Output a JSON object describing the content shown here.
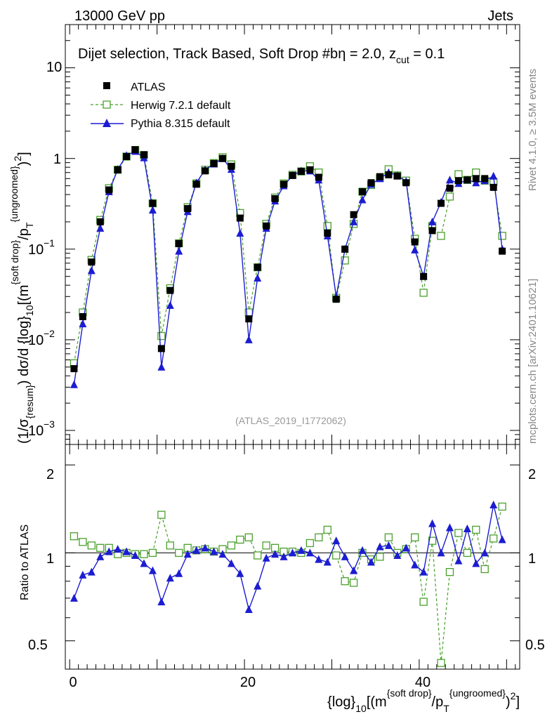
{
  "header": {
    "left": "13000 GeV pp",
    "right": "Jets"
  },
  "legend": {
    "title_main": "Dijet selection, Track Based, Soft Drop #b",
    "title_eta": "η = 2.0, z",
    "title_cut_sub": "cut",
    "title_cut_val": " = 0.1",
    "entries": [
      "ATLAS",
      "Herwig 7.2.1 default",
      "Pythia 8.315 default"
    ]
  },
  "watermark": "(ATLAS_2019_I1772062)",
  "side_labels": {
    "rivet": "Rivet 4.1.0, ≥ 3.5M events",
    "mcplots": "mcplots.cern.ch [arXiv:2401.10621]"
  },
  "axis": {
    "y_main_prefix": "(1/σ",
    "y_main_sub1": "{resum}",
    "y_main_mid": ") dσ/d {log}",
    "y_main_sub2": "10",
    "y_main_mid2": "[(m",
    "y_main_sup1": "{soft drop}",
    "y_main_mid3": "/p",
    "y_main_sub3": "T",
    "y_main_sup2": "{ungroomed}",
    "y_main_end": ")",
    "y_main_sup3": "2",
    "y_main_close": "]",
    "y_ratio": "Ratio to ATLAS",
    "x_pre": "{log}",
    "x_sub1": "10",
    "x_mid": "[(m",
    "x_sup1": "{soft drop}",
    "x_mid2": "/p",
    "x_sub2": "T",
    "x_sup2": "{ungroomed}",
    "x_end": ")",
    "x_sup3": "2",
    "x_close": "]",
    "main_tick_labels": [
      "10",
      "1",
      "10",
      "10"
    ],
    "main_tick_exps": [
      "",
      "",
      "−1",
      "−2",
      "−3"
    ],
    "ratio_tick_labels": [
      "2",
      "1",
      "0.5"
    ],
    "x_tick_labels": [
      "0",
      "20",
      "40"
    ]
  },
  "chart_data": {
    "type": "scatter",
    "x": [
      0.5,
      1.5,
      2.5,
      3.5,
      4.5,
      5.5,
      6.5,
      7.5,
      8.5,
      9.5,
      10.5,
      11.5,
      12.5,
      13.5,
      14.5,
      15.5,
      16.5,
      17.5,
      18.5,
      19.5,
      20.5,
      21.5,
      22.5,
      23.5,
      24.5,
      25.5,
      26.5,
      27.5,
      28.5,
      29.5,
      30.5,
      31.5,
      32.5,
      33.5,
      34.5,
      35.5,
      36.5,
      37.5,
      38.5,
      39.5,
      40.5,
      41.5,
      42.5,
      43.5,
      44.5,
      45.5,
      46.5,
      47.5,
      48.5,
      49.5
    ],
    "xlim": [
      -0.5,
      51.5
    ],
    "ylim_main": [
      0.0007,
      30
    ],
    "ylim_ratio": [
      0.4,
      2.35
    ],
    "main_y_scale": "log",
    "ratio_y_scale": "log",
    "series": [
      {
        "name": "ATLAS",
        "values": [
          0.0048,
          0.018,
          0.072,
          0.2,
          0.45,
          0.75,
          1.05,
          1.25,
          1.1,
          0.32,
          0.008,
          0.035,
          0.115,
          0.28,
          0.52,
          0.73,
          0.88,
          1.0,
          0.82,
          0.22,
          0.017,
          0.063,
          0.18,
          0.36,
          0.52,
          0.65,
          0.72,
          0.75,
          0.62,
          0.15,
          0.028,
          0.1,
          0.24,
          0.43,
          0.54,
          0.63,
          0.66,
          0.64,
          0.54,
          0.12,
          0.05,
          0.16,
          0.32,
          0.47,
          0.57,
          0.58,
          0.6,
          0.6,
          0.48,
          0.095
        ],
        "ratio": [
          1,
          1,
          1,
          1,
          1,
          1,
          1,
          1,
          1,
          1,
          1,
          1,
          1,
          1,
          1,
          1,
          1,
          1,
          1,
          1,
          1,
          1,
          1,
          1,
          1,
          1,
          1,
          1,
          1,
          1,
          1,
          1,
          1,
          1,
          1,
          1,
          1,
          1,
          1,
          1,
          1,
          1,
          1,
          1,
          1,
          1,
          1,
          1,
          1,
          1
        ]
      },
      {
        "name": "Herwig 7.2.1 default",
        "values": [
          0.0055,
          0.02,
          0.076,
          0.21,
          0.47,
          0.75,
          1.05,
          1.24,
          1.09,
          0.32,
          0.011,
          0.037,
          0.116,
          0.29,
          0.53,
          0.75,
          0.89,
          1.03,
          0.86,
          0.25,
          0.02,
          0.063,
          0.19,
          0.37,
          0.53,
          0.66,
          0.72,
          0.82,
          0.7,
          0.18,
          0.029,
          0.075,
          0.19,
          0.43,
          0.51,
          0.61,
          0.76,
          0.65,
          0.57,
          0.13,
          0.033,
          0.18,
          0.14,
          0.38,
          0.67,
          0.58,
          0.7,
          0.57,
          0.55,
          0.14
        ],
        "ratio": [
          1.14,
          1.09,
          1.06,
          1.04,
          1.04,
          0.99,
          1.0,
          0.99,
          0.99,
          1.0,
          1.35,
          1.06,
          1.0,
          1.04,
          1.02,
          1.03,
          1.01,
          1.03,
          1.06,
          1.11,
          1.13,
          0.98,
          1.06,
          1.04,
          1.01,
          1.01,
          1.0,
          1.08,
          1.13,
          1.2,
          0.98,
          0.8,
          0.79,
          1.0,
          0.95,
          0.97,
          1.13,
          1.0,
          1.03,
          1.13,
          0.68,
          1.1,
          0.42,
          0.86,
          1.17,
          1.0,
          1.2,
          0.88,
          1.12,
          1.44
        ]
      },
      {
        "name": "Pythia 8.315 default",
        "values": [
          0.0032,
          0.015,
          0.058,
          0.17,
          0.43,
          0.76,
          1.08,
          1.2,
          1.02,
          0.27,
          0.005,
          0.024,
          0.095,
          0.26,
          0.54,
          0.75,
          0.87,
          1.0,
          0.76,
          0.15,
          0.01,
          0.048,
          0.17,
          0.34,
          0.5,
          0.65,
          0.73,
          0.73,
          0.58,
          0.14,
          0.03,
          0.1,
          0.2,
          0.35,
          0.52,
          0.6,
          0.7,
          0.65,
          0.56,
          0.098,
          0.05,
          0.2,
          0.33,
          0.58,
          0.53,
          0.58,
          0.54,
          0.57,
          0.64,
          0.1
        ],
        "ratio": [
          0.7,
          0.84,
          0.86,
          0.97,
          1.01,
          1.03,
          1.01,
          0.98,
          0.92,
          0.87,
          0.68,
          0.82,
          0.85,
          0.99,
          1.02,
          1.04,
          1.01,
          0.99,
          0.92,
          0.85,
          0.64,
          0.77,
          0.96,
          0.99,
          0.97,
          1.0,
          1.02,
          1.0,
          0.95,
          0.93,
          1.1,
          0.97,
          0.87,
          1.02,
          0.93,
          1.05,
          1.06,
          0.98,
          1.04,
          0.91,
          0.86,
          1.26,
          1.0,
          1.22,
          0.94,
          1.21,
          0.92,
          1.0,
          1.46,
          1.11
        ]
      }
    ],
    "colors": {
      "ATLAS": "#000000",
      "Herwig 7.2.1 default": "#4aa02c",
      "Pythia 8.315 default": "#1c1cd2"
    }
  }
}
